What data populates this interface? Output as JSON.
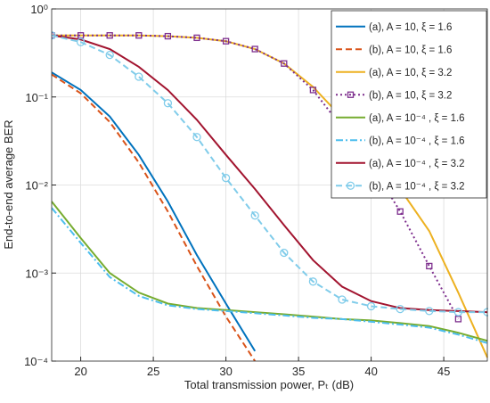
{
  "chart_data": {
    "type": "line",
    "xlabel": "Total transmission power, Pₜ (dB)",
    "ylabel": "End-to-end average BER",
    "log_y": true,
    "grid": true,
    "legend": "upper right",
    "x": [
      18,
      20,
      22,
      24,
      26,
      28,
      30,
      32,
      34,
      36,
      38,
      40,
      42,
      44,
      46,
      48
    ],
    "xlim": [
      18,
      48
    ],
    "xticks": [
      20,
      25,
      30,
      35,
      40,
      45
    ],
    "ylim": [
      0.0001,
      1
    ],
    "yticks": [
      {
        "value": 0.0001,
        "label": "10⁻⁴"
      },
      {
        "value": 0.001,
        "label": "10⁻³"
      },
      {
        "value": 0.01,
        "label": "10⁻²"
      },
      {
        "value": 0.1,
        "label": "10⁻¹"
      },
      {
        "value": 1,
        "label": "10⁰"
      }
    ],
    "series": [
      {
        "name": "(a), A = 10, ξ = 1.6",
        "color": "#0072BD",
        "linestyle": "solid",
        "values": [
          0.19,
          0.12,
          0.06,
          0.022,
          0.0065,
          0.0016,
          0.00045,
          0.00013,
          null,
          null,
          null,
          null,
          null,
          null,
          null,
          null
        ]
      },
      {
        "name": "(b), A = 10, ξ = 1.6",
        "color": "#D95319",
        "linestyle": "dashed",
        "values": [
          0.18,
          0.11,
          0.052,
          0.018,
          0.005,
          0.0012,
          0.00032,
          0.0001,
          null,
          null,
          null,
          null,
          null,
          null,
          null,
          null
        ]
      },
      {
        "name": "(a), A = 10, ξ = 3.2",
        "color": "#EDB120",
        "linestyle": "solid",
        "values": [
          0.5,
          0.5,
          0.5,
          0.5,
          0.49,
          0.47,
          0.43,
          0.35,
          0.24,
          0.13,
          0.058,
          0.024,
          0.009,
          0.003,
          0.0006,
          0.00011
        ]
      },
      {
        "name": "(b), A = 10, ξ = 3.2",
        "color": "#7E2F8E",
        "linestyle": "dotted",
        "marker": "square",
        "values": [
          0.5,
          0.5,
          0.5,
          0.5,
          0.49,
          0.47,
          0.43,
          0.35,
          0.24,
          0.12,
          0.045,
          0.017,
          0.005,
          0.0012,
          0.0003,
          null
        ]
      },
      {
        "name": "(a), A = 10⁻⁴ , ξ = 1.6",
        "color": "#77AC30",
        "linestyle": "solid",
        "values": [
          0.0065,
          0.0025,
          0.001,
          0.0006,
          0.00045,
          0.0004,
          0.00038,
          0.00036,
          0.00034,
          0.00032,
          0.0003,
          0.00029,
          0.00027,
          0.00025,
          0.00021,
          0.00017
        ]
      },
      {
        "name": "(b), A = 10⁻⁴ , ξ = 1.6",
        "color": "#4DBEEE",
        "linestyle": "dashdot",
        "values": [
          0.0055,
          0.0022,
          0.0009,
          0.00055,
          0.00043,
          0.00039,
          0.00037,
          0.00035,
          0.00033,
          0.00031,
          0.0003,
          0.00028,
          0.00026,
          0.00024,
          0.0002,
          0.00016
        ]
      },
      {
        "name": "(a), A = 10⁻⁴ , ξ = 3.2",
        "color": "#A2142F",
        "linestyle": "solid",
        "values": [
          0.5,
          0.45,
          0.35,
          0.22,
          0.12,
          0.055,
          0.022,
          0.009,
          0.0035,
          0.0014,
          0.0007,
          0.00048,
          0.0004,
          0.00038,
          0.00037,
          0.00036
        ]
      },
      {
        "name": "(b), A = 10⁻⁴ , ξ = 3.2",
        "color": "#80CCEA",
        "linestyle": "dashed",
        "marker": "circle",
        "values": [
          0.5,
          0.42,
          0.3,
          0.17,
          0.085,
          0.035,
          0.012,
          0.0045,
          0.0017,
          0.0008,
          0.0005,
          0.00042,
          0.00039,
          0.00037,
          0.00036,
          0.00036
        ]
      }
    ]
  }
}
